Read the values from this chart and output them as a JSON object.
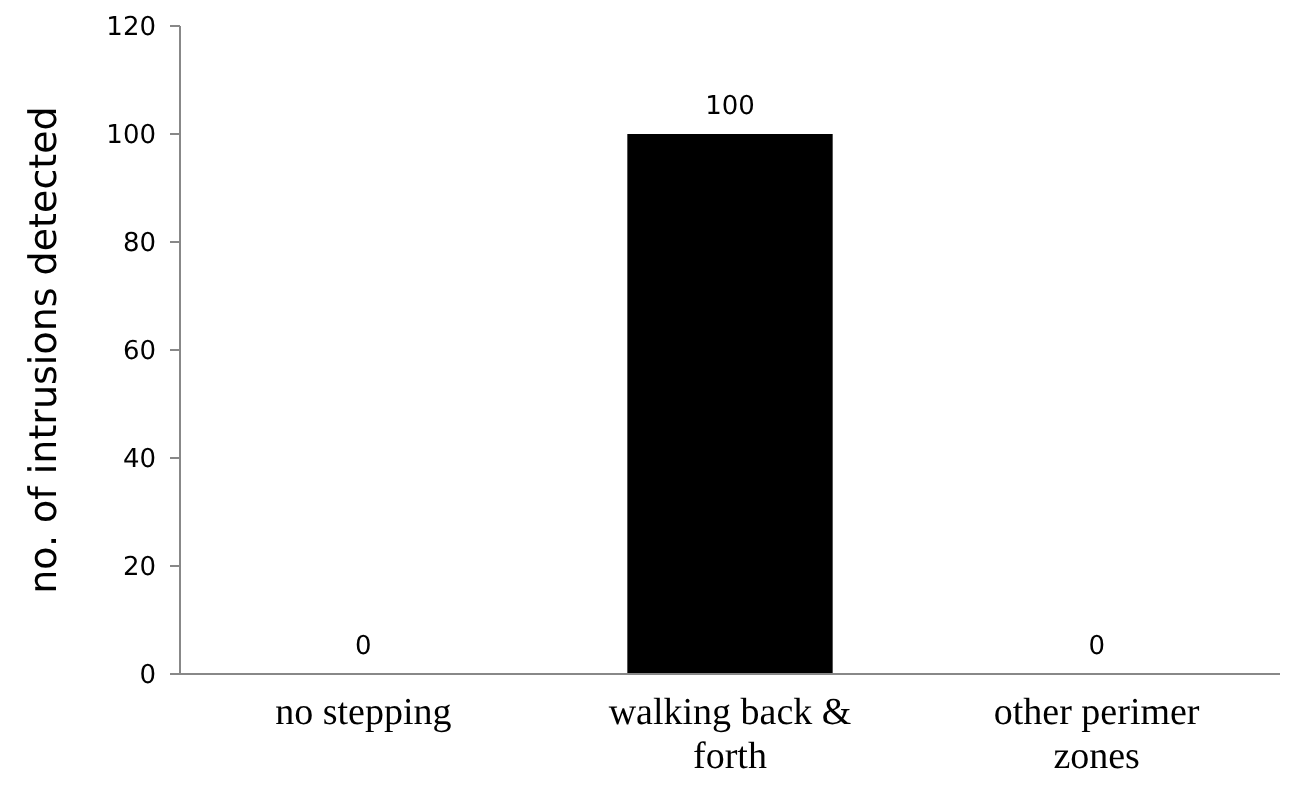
{
  "chart_data": {
    "type": "bar",
    "ylabel": "no. of intrusions detected",
    "categories": [
      "no stepping",
      "walking back & forth",
      "other perimer zones"
    ],
    "values": [
      0,
      100,
      0
    ],
    "color": "#000000",
    "ylim": [
      0,
      120
    ],
    "yticks": [
      0,
      20,
      40,
      60,
      80,
      100,
      120
    ],
    "data_labels": true,
    "grid": false
  }
}
